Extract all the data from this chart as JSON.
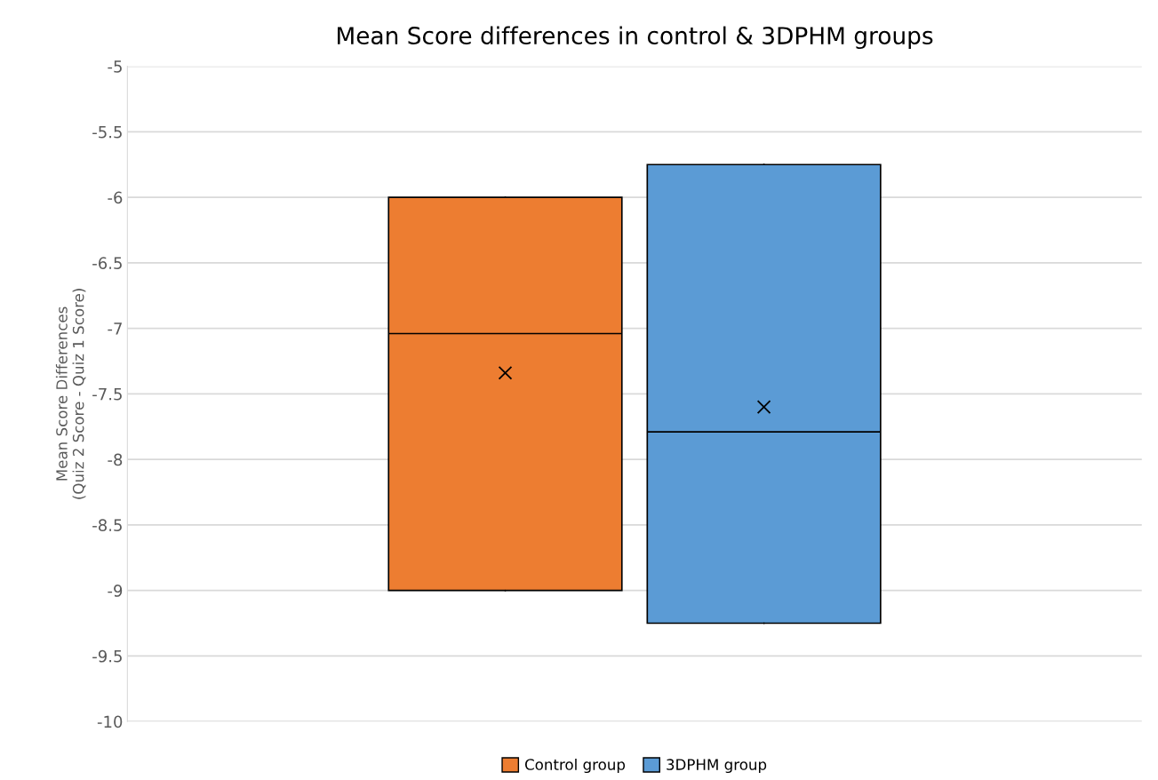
{
  "chart_data": {
    "type": "box",
    "title": "Mean Score differences in control & 3DPHM groups",
    "ylabel": "Mean Score Differences\n(Quiz 2 Score - Quiz 1 Score)",
    "categories": [
      null
    ],
    "series": [
      {
        "name": "Control group",
        "color": "#ed7d31",
        "boxes": [
          {
            "low": -9,
            "q1": -9,
            "median": -7.04,
            "q3": -6,
            "high": -6,
            "mean": -7.34
          }
        ]
      },
      {
        "name": "3DPHM group",
        "color": "#5b9bd5",
        "boxes": [
          {
            "low": -9.25,
            "q1": -9.25,
            "median": -7.79,
            "q3": -5.75,
            "high": -5.75,
            "mean": -7.6
          }
        ]
      }
    ],
    "ylim": [
      -10,
      -5
    ],
    "yticks": [
      -10,
      -9.5,
      -9,
      -8.5,
      -8,
      -7.5,
      -7,
      -6.5,
      -6,
      -5.5,
      -5
    ],
    "grid": "y",
    "legend": "bottom",
    "tick_labels": "y"
  }
}
